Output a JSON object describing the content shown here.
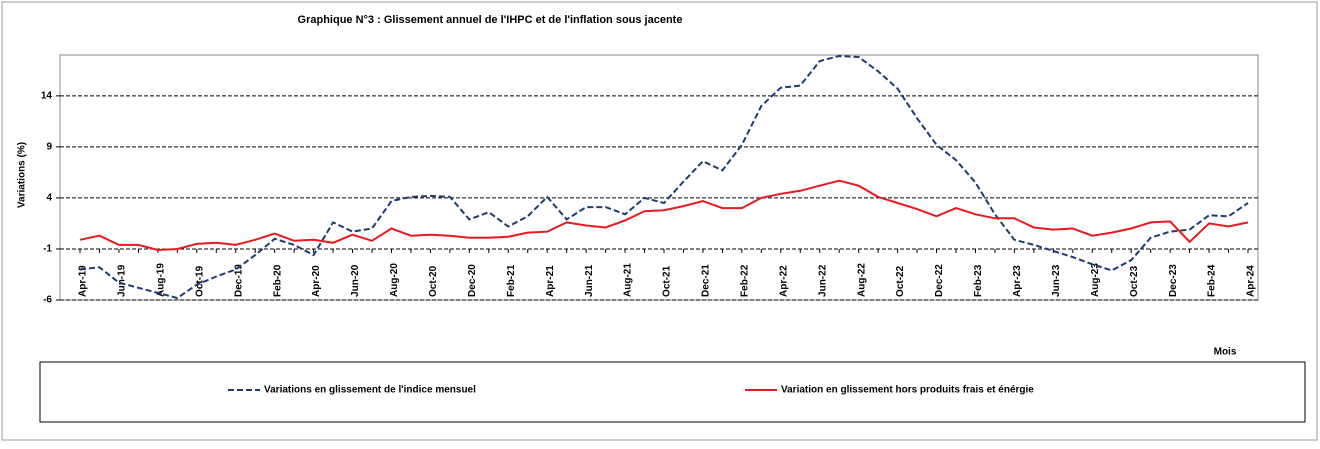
{
  "chart_data": {
    "type": "line",
    "title": "Graphique N°3 : Glissement annuel de l'IHPC et de l'inflation sous jacente",
    "xlabel": "Mois",
    "ylabel": "Variations (%)",
    "categories": [
      "Apr-19",
      null,
      "Jun-19",
      null,
      "Aug-19",
      null,
      "Oct-19",
      null,
      "Dec-19",
      null,
      "Feb-20",
      null,
      "Apr-20",
      null,
      "Jun-20",
      null,
      "Aug-20",
      null,
      "Oct-20",
      null,
      "Dec-20",
      null,
      "Feb-21",
      null,
      "Apr-21",
      null,
      "Jun-21",
      null,
      "Aug-21",
      null,
      "Oct-21",
      null,
      "Dec-21",
      null,
      "Feb-22",
      null,
      "Apr-22",
      null,
      "Jun-22",
      null,
      "Aug-22",
      null,
      "Oct-22",
      null,
      "Dec-22",
      null,
      "Feb-23",
      null,
      "Apr-23",
      null,
      "Jun-23",
      null,
      "Aug-23",
      null,
      "Oct-23",
      null,
      "Dec-23",
      null,
      "Feb-24",
      null,
      "Apr-24"
    ],
    "series": [
      {
        "name": "Variations en glissement de l'indice mensuel",
        "color": "#1f3a6e",
        "style": "dashed",
        "values": [
          -3.0,
          -2.8,
          -4.3,
          -4.8,
          -5.3,
          -5.8,
          -4.5,
          -3.7,
          -3.0,
          -1.6,
          0.0,
          -0.6,
          -1.6,
          1.6,
          0.7,
          1.0,
          3.7,
          4.1,
          4.2,
          4.1,
          1.9,
          2.6,
          1.2,
          2.2,
          4.1,
          1.9,
          3.1,
          3.1,
          2.4,
          4.0,
          3.5,
          5.6,
          7.6,
          6.7,
          9.2,
          13.0,
          14.8,
          15.0,
          17.4,
          17.9,
          17.8,
          16.4,
          14.7,
          11.8,
          9.2,
          7.7,
          5.5,
          2.4,
          -0.1,
          -0.6,
          -1.2,
          -1.8,
          -2.5,
          -3.1,
          -2.1,
          0.1,
          0.7,
          0.9,
          2.3,
          2.2,
          3.5
        ]
      },
      {
        "name": "Variation en glissement hors produits frais et énérgie",
        "color": "#e8191f",
        "style": "solid",
        "values": [
          -0.1,
          0.3,
          -0.6,
          -0.6,
          -1.1,
          -1.0,
          -0.5,
          -0.4,
          -0.6,
          -0.1,
          0.5,
          -0.2,
          -0.1,
          -0.4,
          0.4,
          -0.2,
          1.0,
          0.3,
          0.4,
          0.3,
          0.1,
          0.1,
          0.2,
          0.6,
          0.7,
          1.6,
          1.3,
          1.1,
          1.8,
          2.7,
          2.8,
          3.2,
          3.7,
          3.0,
          3.0,
          4.0,
          4.4,
          4.7,
          5.2,
          5.7,
          5.2,
          4.1,
          3.5,
          2.9,
          2.2,
          3.0,
          2.4,
          2.0,
          2.0,
          1.1,
          0.9,
          1.0,
          0.3,
          0.6,
          1.0,
          1.6,
          1.7,
          -0.3,
          1.5,
          1.2,
          1.6
        ]
      }
    ],
    "ylim": [
      -6,
      18
    ],
    "yticks": [
      -6,
      -1,
      4,
      9,
      14
    ],
    "grid": true
  }
}
